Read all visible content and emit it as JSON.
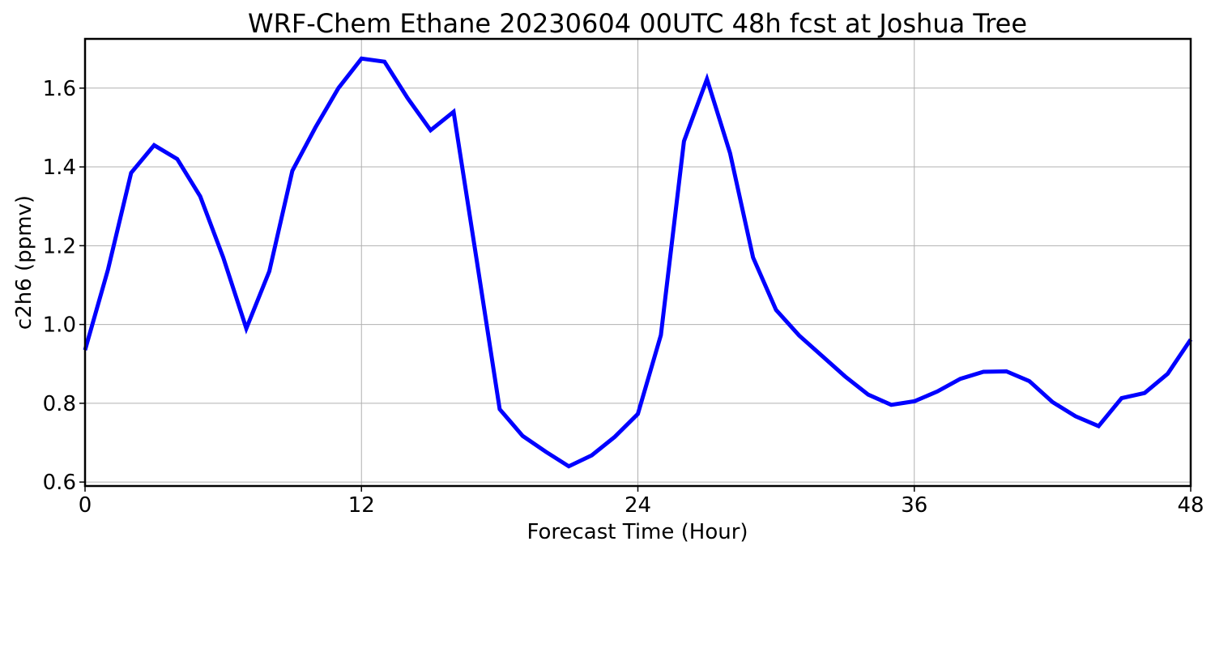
{
  "chart_data": {
    "type": "line",
    "title": "WRF-Chem Ethane  20230604 00UTC 48h fcst at Joshua Tree",
    "xlabel": "Forecast Time (Hour)",
    "ylabel": "c2h6  (ppmv)",
    "xlim": [
      0,
      48
    ],
    "ylim": [
      0.59,
      1.725
    ],
    "xticks": [
      0,
      12,
      24,
      36,
      48
    ],
    "xtick_labels": [
      "0",
      "12",
      "24",
      "36",
      "48"
    ],
    "yticks": [
      0.6,
      0.8,
      1.0,
      1.2,
      1.4,
      1.6
    ],
    "ytick_labels": [
      "0.6",
      "0.8",
      "1.0",
      "1.2",
      "1.4",
      "1.6"
    ],
    "grid": true,
    "series": [
      {
        "color": "#0000ff",
        "x": [
          0,
          1,
          2,
          3,
          4,
          5,
          6,
          7,
          8,
          9,
          10,
          11,
          12,
          13,
          14,
          15,
          16,
          17,
          18,
          19,
          20,
          21,
          22,
          23,
          24,
          25,
          26,
          27,
          28,
          29,
          30,
          31,
          32,
          33,
          34,
          35,
          36,
          37,
          38,
          39,
          40,
          41,
          42,
          43,
          44,
          45,
          46,
          47,
          48
        ],
        "values": [
          0.935,
          1.14,
          1.385,
          1.455,
          1.42,
          1.325,
          1.17,
          0.99,
          1.135,
          1.39,
          1.5,
          1.6,
          1.675,
          1.667,
          1.575,
          1.493,
          1.54,
          1.165,
          0.785,
          0.717,
          0.677,
          0.64,
          0.668,
          0.715,
          0.773,
          0.973,
          1.465,
          1.623,
          1.435,
          1.17,
          1.037,
          0.972,
          0.92,
          0.868,
          0.822,
          0.796,
          0.805,
          0.83,
          0.862,
          0.88,
          0.881,
          0.856,
          0.803,
          0.767,
          0.742,
          0.813,
          0.826,
          0.875,
          0.962
        ]
      }
    ]
  }
}
